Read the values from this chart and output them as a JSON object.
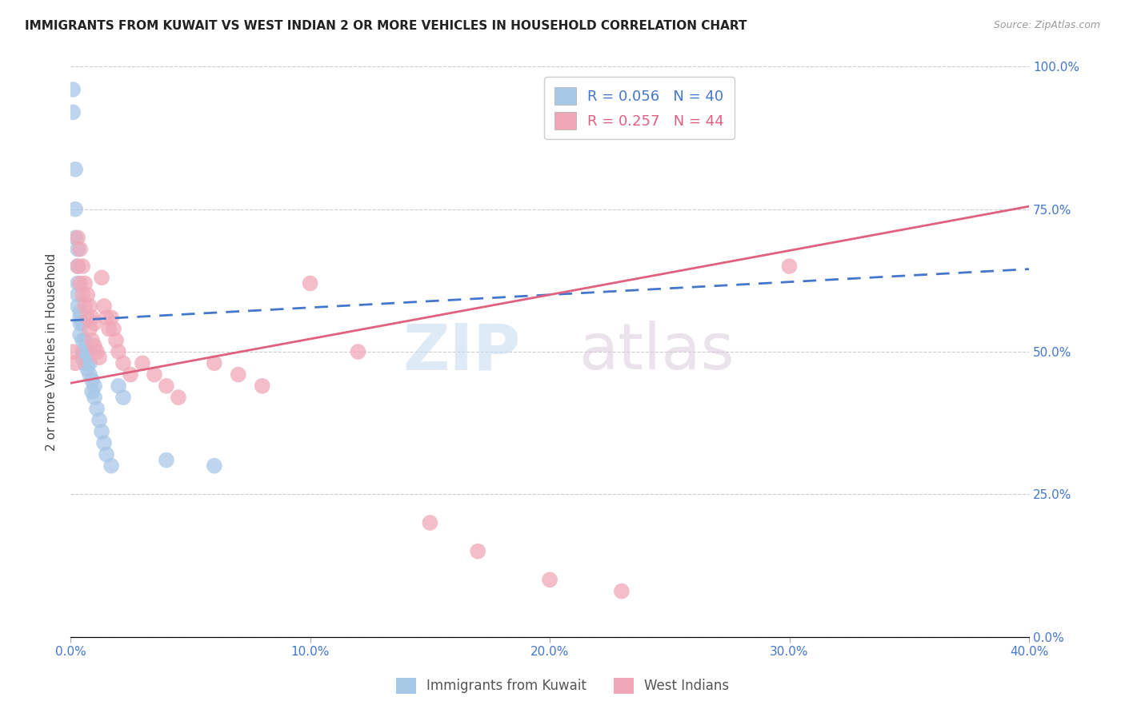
{
  "title": "IMMIGRANTS FROM KUWAIT VS WEST INDIAN 2 OR MORE VEHICLES IN HOUSEHOLD CORRELATION CHART",
  "source": "Source: ZipAtlas.com",
  "ylabel": "2 or more Vehicles in Household",
  "x_min": 0.0,
  "x_max": 0.4,
  "y_min": 0.0,
  "y_max": 1.0,
  "x_ticks": [
    0.0,
    0.1,
    0.2,
    0.3,
    0.4
  ],
  "x_tick_labels": [
    "0.0%",
    "10.0%",
    "20.0%",
    "30.0%",
    "40.0%"
  ],
  "y_ticks": [
    0.0,
    0.25,
    0.5,
    0.75,
    1.0
  ],
  "y_tick_labels": [
    "0.0%",
    "25.0%",
    "50.0%",
    "75.0%",
    "100.0%"
  ],
  "kuwait_R": 0.056,
  "kuwait_N": 40,
  "westindian_R": 0.257,
  "westindian_N": 44,
  "kuwait_color": "#a8c8e8",
  "westindian_color": "#f0a8b8",
  "kuwait_line_color": "#4477cc",
  "westindian_line_color": "#e06080",
  "legend1_label": "Immigrants from Kuwait",
  "legend2_label": "West Indians",
  "watermark_zip": "ZIP",
  "watermark_atlas": "atlas",
  "kuwait_line_x0": 0.0,
  "kuwait_line_x1": 0.4,
  "kuwait_line_y0": 0.555,
  "kuwait_line_y1": 0.645,
  "westindian_line_x0": 0.0,
  "westindian_line_x1": 0.4,
  "westindian_line_y0": 0.445,
  "westindian_line_y1": 0.755,
  "kuwait_x": [
    0.001,
    0.001,
    0.002,
    0.002,
    0.002,
    0.003,
    0.003,
    0.003,
    0.003,
    0.003,
    0.004,
    0.004,
    0.004,
    0.004,
    0.005,
    0.005,
    0.005,
    0.005,
    0.006,
    0.006,
    0.006,
    0.007,
    0.007,
    0.007,
    0.008,
    0.008,
    0.009,
    0.009,
    0.01,
    0.01,
    0.011,
    0.012,
    0.013,
    0.014,
    0.015,
    0.017,
    0.02,
    0.022,
    0.04,
    0.06
  ],
  "kuwait_y": [
    0.96,
    0.92,
    0.82,
    0.75,
    0.7,
    0.68,
    0.65,
    0.62,
    0.6,
    0.58,
    0.57,
    0.56,
    0.55,
    0.53,
    0.55,
    0.52,
    0.5,
    0.49,
    0.52,
    0.5,
    0.48,
    0.5,
    0.48,
    0.47,
    0.48,
    0.46,
    0.45,
    0.43,
    0.44,
    0.42,
    0.4,
    0.38,
    0.36,
    0.34,
    0.32,
    0.3,
    0.44,
    0.42,
    0.31,
    0.3
  ],
  "westindian_x": [
    0.001,
    0.002,
    0.003,
    0.003,
    0.004,
    0.004,
    0.005,
    0.005,
    0.006,
    0.006,
    0.007,
    0.007,
    0.008,
    0.008,
    0.009,
    0.009,
    0.01,
    0.01,
    0.011,
    0.012,
    0.013,
    0.014,
    0.015,
    0.016,
    0.017,
    0.018,
    0.019,
    0.02,
    0.022,
    0.025,
    0.03,
    0.035,
    0.04,
    0.045,
    0.06,
    0.07,
    0.08,
    0.1,
    0.12,
    0.15,
    0.17,
    0.2,
    0.23,
    0.3
  ],
  "westindian_y": [
    0.5,
    0.48,
    0.7,
    0.65,
    0.68,
    0.62,
    0.65,
    0.6,
    0.62,
    0.58,
    0.6,
    0.56,
    0.58,
    0.54,
    0.56,
    0.52,
    0.55,
    0.51,
    0.5,
    0.49,
    0.63,
    0.58,
    0.56,
    0.54,
    0.56,
    0.54,
    0.52,
    0.5,
    0.48,
    0.46,
    0.48,
    0.46,
    0.44,
    0.42,
    0.48,
    0.46,
    0.44,
    0.62,
    0.5,
    0.2,
    0.15,
    0.1,
    0.08,
    0.65
  ]
}
